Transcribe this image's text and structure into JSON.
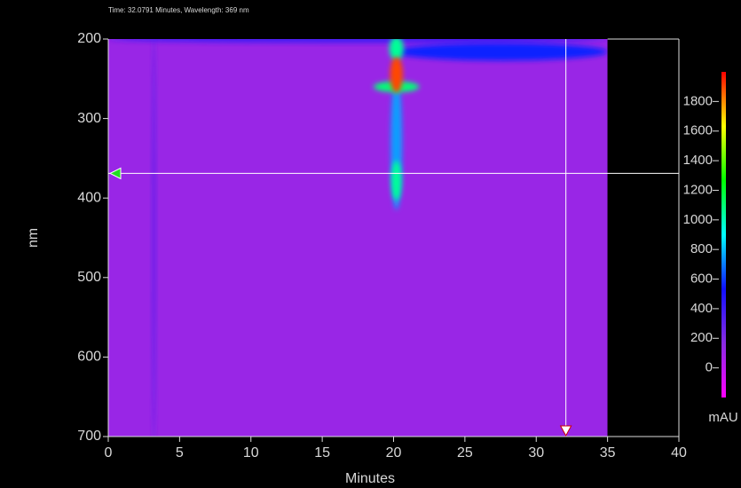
{
  "chart_data": {
    "type": "heatmap",
    "header": "Time: 32.0791 Minutes, Wavelength: 369 nm",
    "xlabel": "Minutes",
    "ylabel": "nm",
    "zlabel": "mAU",
    "xlim": [
      0,
      40
    ],
    "xticks": [
      0,
      5,
      10,
      15,
      20,
      25,
      30,
      35,
      40
    ],
    "ylim": [
      200,
      700
    ],
    "yticks": [
      200,
      300,
      400,
      500,
      600,
      700
    ],
    "zlim": [
      -200,
      2000
    ],
    "zticks": [
      0,
      200,
      400,
      600,
      800,
      1000,
      1200,
      1400,
      1600,
      1800
    ],
    "colorscale": [
      "#ff00ff",
      "#8a2be2",
      "#1010ff",
      "#00ffff",
      "#00ff00",
      "#ffff00",
      "#ff0000"
    ],
    "data_range": [
      0,
      35
    ],
    "background_value": 120,
    "spots": [
      {
        "time": 3.2,
        "wavelength": 450,
        "time_width": 0.3,
        "wavelength_width": 520,
        "value": 260
      },
      {
        "time": 17.5,
        "wavelength": 200,
        "time_width": 35,
        "wavelength_width": 10,
        "value": 380
      },
      {
        "time": 27.5,
        "wavelength": 216,
        "time_width": 15,
        "wavelength_width": 22,
        "value": 560
      },
      {
        "time": 20.2,
        "wavelength": 330,
        "time_width": 0.8,
        "wavelength_width": 170,
        "value": 750
      },
      {
        "time": 20.2,
        "wavelength": 260,
        "time_width": 3.2,
        "wavelength_width": 14,
        "value": 1100
      },
      {
        "time": 20.2,
        "wavelength": 212,
        "time_width": 1,
        "wavelength_width": 30,
        "value": 1050
      },
      {
        "time": 20.2,
        "wavelength": 378,
        "time_width": 0.7,
        "wavelength_width": 50,
        "value": 1050
      },
      {
        "time": 20.2,
        "wavelength": 245,
        "time_width": 0.9,
        "wavelength_width": 45,
        "value": 1900
      }
    ],
    "cursor": {
      "time": 32.0791,
      "wavelength": 369
    }
  }
}
